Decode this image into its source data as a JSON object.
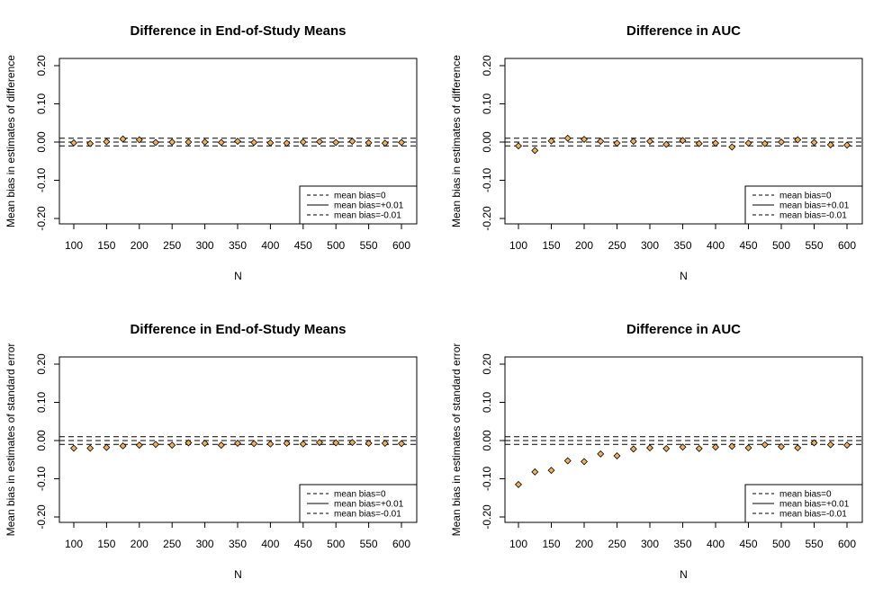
{
  "colors": {
    "point_fill": "#f2b25c",
    "point_stroke": "#000000",
    "line": "#000000",
    "background": "#ffffff"
  },
  "chart_data": [
    {
      "type": "scatter",
      "title": "Difference in End-of-Study Means",
      "xlabel": "N",
      "ylabel": "Mean bias in estimates of difference",
      "xlim": [
        100,
        600
      ],
      "ylim": [
        -0.2,
        0.2
      ],
      "xticks": [
        "100",
        "150",
        "200",
        "250",
        "300",
        "350",
        "400",
        "450",
        "500",
        "550",
        "600"
      ],
      "yticks": [
        "-0.20",
        "-0.10",
        "0.00",
        "0.10",
        "0.20"
      ],
      "x": [
        100,
        125,
        150,
        175,
        200,
        225,
        250,
        275,
        300,
        325,
        350,
        375,
        400,
        425,
        450,
        475,
        500,
        525,
        550,
        575,
        600
      ],
      "y": [
        -0.002,
        -0.004,
        0.001,
        0.008,
        0.006,
        -0.001,
        0.0,
        0.0,
        0.0,
        -0.001,
        0.002,
        -0.001,
        -0.002,
        -0.003,
        0.0,
        0.001,
        -0.001,
        0.002,
        -0.002,
        -0.003,
        -0.001
      ],
      "reference_lines": [
        {
          "y": 0,
          "style": "dashed"
        },
        {
          "y": 0.01,
          "style": "dashed"
        },
        {
          "y": -0.01,
          "style": "dashed"
        }
      ],
      "legend": {
        "position": "bottom-right",
        "entries": [
          {
            "label": "mean bias=0",
            "style": "dashed"
          },
          {
            "label": "mean bias=+0.01",
            "style": "solid"
          },
          {
            "label": "mean bias=-0.01",
            "style": "dashed"
          }
        ]
      }
    },
    {
      "type": "scatter",
      "title": "Difference in AUC",
      "xlabel": "N",
      "ylabel": "Mean bias in estimates of difference",
      "xlim": [
        100,
        600
      ],
      "ylim": [
        -0.2,
        0.2
      ],
      "xticks": [
        "100",
        "150",
        "200",
        "250",
        "300",
        "350",
        "400",
        "450",
        "500",
        "550",
        "600"
      ],
      "yticks": [
        "-0.20",
        "-0.10",
        "0.00",
        "0.10",
        "0.20"
      ],
      "x": [
        100,
        125,
        150,
        175,
        200,
        225,
        250,
        275,
        300,
        325,
        350,
        375,
        400,
        425,
        450,
        475,
        500,
        525,
        550,
        575,
        600
      ],
      "y": [
        -0.01,
        -0.022,
        0.003,
        0.01,
        0.007,
        0.002,
        -0.003,
        0.002,
        0.002,
        -0.006,
        0.004,
        -0.004,
        -0.003,
        -0.013,
        -0.003,
        -0.004,
        0.0,
        0.006,
        -0.001,
        -0.007,
        -0.008
      ],
      "reference_lines": [
        {
          "y": 0,
          "style": "dashed"
        },
        {
          "y": 0.01,
          "style": "dashed"
        },
        {
          "y": -0.01,
          "style": "dashed"
        }
      ],
      "legend": {
        "position": "bottom-right",
        "entries": [
          {
            "label": "mean bias=0",
            "style": "dashed"
          },
          {
            "label": "mean bias=+0.01",
            "style": "solid"
          },
          {
            "label": "mean bias=-0.01",
            "style": "dashed"
          }
        ]
      }
    },
    {
      "type": "scatter",
      "title": "Difference in End-of-Study Means",
      "xlabel": "N",
      "ylabel": "Mean bias in estimates of standard error",
      "xlim": [
        100,
        600
      ],
      "ylim": [
        -0.2,
        0.2
      ],
      "xticks": [
        "100",
        "150",
        "200",
        "250",
        "300",
        "350",
        "400",
        "450",
        "500",
        "550",
        "600"
      ],
      "yticks": [
        "-0.20",
        "-0.10",
        "0.00",
        "0.10",
        "0.20"
      ],
      "x": [
        100,
        125,
        150,
        175,
        200,
        225,
        250,
        275,
        300,
        325,
        350,
        375,
        400,
        425,
        450,
        475,
        500,
        525,
        550,
        575,
        600
      ],
      "y": [
        -0.02,
        -0.02,
        -0.018,
        -0.014,
        -0.012,
        -0.01,
        -0.012,
        -0.006,
        -0.007,
        -0.012,
        -0.007,
        -0.008,
        -0.009,
        -0.007,
        -0.009,
        -0.005,
        -0.006,
        -0.005,
        -0.007,
        -0.007,
        -0.008
      ],
      "reference_lines": [
        {
          "y": 0,
          "style": "dashed"
        },
        {
          "y": 0.01,
          "style": "dashed"
        },
        {
          "y": -0.01,
          "style": "dashed"
        }
      ],
      "legend": {
        "position": "bottom-right",
        "entries": [
          {
            "label": "mean bias=0",
            "style": "dashed"
          },
          {
            "label": "mean bias=+0.01",
            "style": "solid"
          },
          {
            "label": "mean bias=-0.01",
            "style": "dashed"
          }
        ]
      }
    },
    {
      "type": "scatter",
      "title": "Difference in AUC",
      "xlabel": "N",
      "ylabel": "Mean bias in estimates of standard error",
      "xlim": [
        100,
        600
      ],
      "ylim": [
        -0.2,
        0.2
      ],
      "xticks": [
        "100",
        "150",
        "200",
        "250",
        "300",
        "350",
        "400",
        "450",
        "500",
        "550",
        "600"
      ],
      "yticks": [
        "-0.20",
        "-0.10",
        "0.00",
        "0.10",
        "0.20"
      ],
      "x": [
        100,
        125,
        150,
        175,
        200,
        225,
        250,
        275,
        300,
        325,
        350,
        375,
        400,
        425,
        450,
        475,
        500,
        525,
        550,
        575,
        600
      ],
      "y": [
        -0.115,
        -0.082,
        -0.078,
        -0.053,
        -0.055,
        -0.035,
        -0.04,
        -0.022,
        -0.019,
        -0.021,
        -0.017,
        -0.021,
        -0.017,
        -0.015,
        -0.019,
        -0.011,
        -0.016,
        -0.019,
        -0.006,
        -0.011,
        -0.012
      ],
      "reference_lines": [
        {
          "y": 0,
          "style": "dashed"
        },
        {
          "y": 0.01,
          "style": "dashed"
        },
        {
          "y": -0.01,
          "style": "dashed"
        }
      ],
      "legend": {
        "position": "bottom-right",
        "entries": [
          {
            "label": "mean bias=0",
            "style": "dashed"
          },
          {
            "label": "mean bias=+0.01",
            "style": "solid"
          },
          {
            "label": "mean bias=-0.01",
            "style": "dashed"
          }
        ]
      }
    }
  ]
}
